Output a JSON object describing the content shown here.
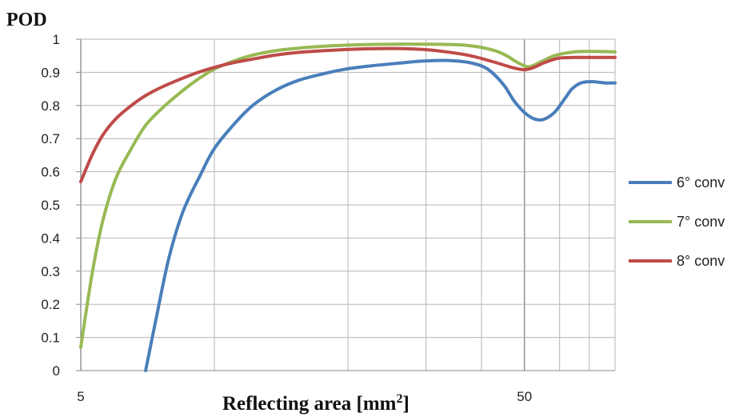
{
  "chart_data": {
    "type": "line",
    "y_title": "POD",
    "x_title_prefix": "Reflecting area [mm",
    "x_title_sup": "2",
    "x_title_suffix": "]",
    "x_scale": "log",
    "xlim": [
      5,
      80
    ],
    "ylim": [
      0,
      1
    ],
    "grid": true,
    "legend_position": "right",
    "y_ticks": [
      "0",
      "0.1",
      "0.2",
      "0.3",
      "0.4",
      "0.5",
      "0.6",
      "0.7",
      "0.8",
      "0.9",
      "1"
    ],
    "x_tick_labels": [
      {
        "value": 5,
        "label": "5"
      },
      {
        "value": 50,
        "label": "50"
      }
    ],
    "x_gridlines": [
      5,
      10,
      20,
      30,
      40,
      50,
      60,
      70,
      80
    ],
    "series": [
      {
        "name": "6° conv",
        "color": "#4a7ebb",
        "x": [
          7.0,
          7.4,
          7.9,
          8.5,
          9.3,
          10.0,
          11.1,
          12.2,
          13.7,
          15.4,
          17.5,
          19.8,
          22.7,
          26.2,
          29.5,
          33.2,
          37.4,
          40.7,
          43.0,
          45.3,
          47.3,
          49.9,
          52.5,
          55.2,
          58.5,
          61.6,
          64.0,
          67.0,
          71.0,
          76.0,
          80.0
        ],
        "y": [
          0.0,
          0.16,
          0.34,
          0.48,
          0.59,
          0.67,
          0.745,
          0.8,
          0.845,
          0.875,
          0.895,
          0.91,
          0.92,
          0.928,
          0.934,
          0.936,
          0.93,
          0.915,
          0.89,
          0.855,
          0.815,
          0.78,
          0.76,
          0.758,
          0.78,
          0.82,
          0.85,
          0.868,
          0.872,
          0.868,
          0.868
        ]
      },
      {
        "name": "7° conv",
        "color": "#98b954",
        "x": [
          5.0,
          5.3,
          5.6,
          6.0,
          6.5,
          7.0,
          7.6,
          8.4,
          9.2,
          10.0,
          11.1,
          12.2,
          13.7,
          15.4,
          17.7,
          20.8,
          25.5,
          31.0,
          35.8,
          39.3,
          43.0,
          45.6,
          47.5,
          49.9,
          51.7,
          55.0,
          58.9,
          65.0,
          71.0,
          80.0
        ],
        "y": [
          0.07,
          0.29,
          0.45,
          0.58,
          0.67,
          0.74,
          0.79,
          0.84,
          0.88,
          0.91,
          0.935,
          0.952,
          0.965,
          0.973,
          0.979,
          0.983,
          0.985,
          0.985,
          0.983,
          0.977,
          0.965,
          0.95,
          0.935,
          0.92,
          0.918,
          0.935,
          0.952,
          0.962,
          0.963,
          0.962
        ]
      },
      {
        "name": "8° conv",
        "color": "#be4b48",
        "x": [
          5.0,
          5.3,
          5.6,
          6.0,
          6.5,
          7.0,
          7.6,
          8.4,
          9.2,
          10.0,
          11.1,
          12.2,
          13.7,
          15.4,
          18.5,
          21.8,
          25.5,
          29.5,
          33.2,
          37.8,
          43.0,
          46.8,
          49.9,
          52.5,
          55.6,
          59.8,
          64.7,
          71.0,
          80.0
        ],
        "y": [
          0.57,
          0.65,
          0.71,
          0.76,
          0.8,
          0.83,
          0.855,
          0.88,
          0.9,
          0.915,
          0.93,
          0.94,
          0.952,
          0.96,
          0.967,
          0.971,
          0.972,
          0.969,
          0.962,
          0.95,
          0.93,
          0.915,
          0.908,
          0.915,
          0.93,
          0.943,
          0.945,
          0.945,
          0.945
        ]
      }
    ]
  }
}
